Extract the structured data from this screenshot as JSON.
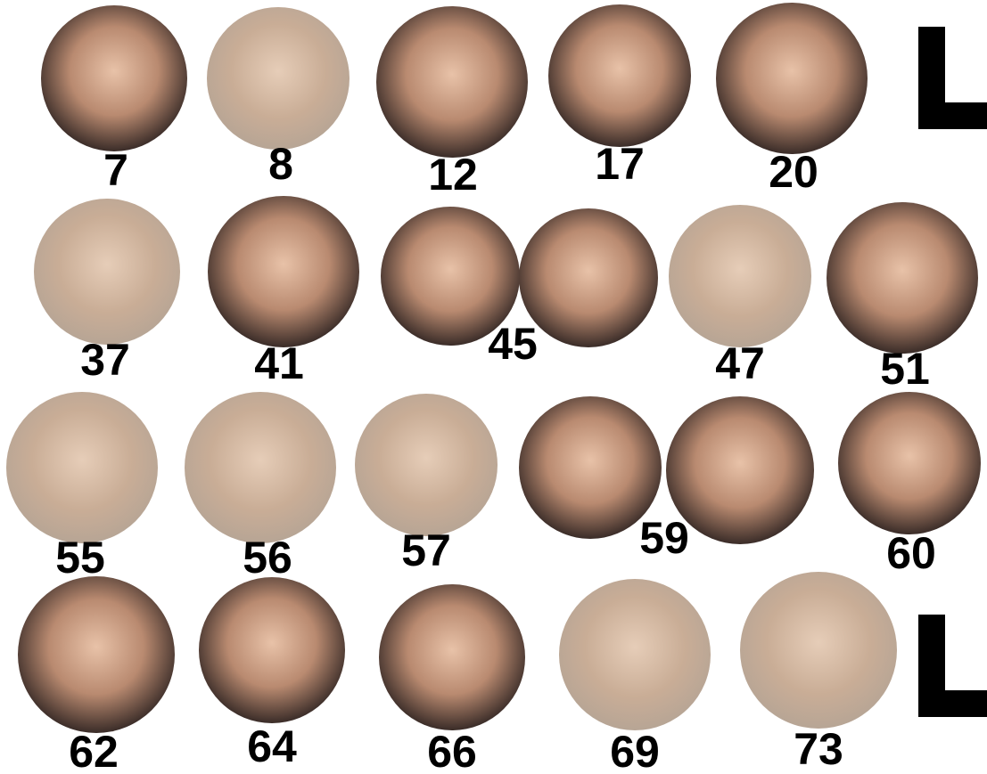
{
  "faces": [
    {
      "label": "7"
    },
    {
      "label": "8"
    },
    {
      "label": "12"
    },
    {
      "label": "17"
    },
    {
      "label": "20"
    },
    {
      "label": "37"
    },
    {
      "label": "41"
    },
    {
      "label": "45"
    },
    {
      "label": "47"
    },
    {
      "label": "51"
    },
    {
      "label": "55"
    },
    {
      "label": "56"
    },
    {
      "label": "57"
    },
    {
      "label": "59"
    },
    {
      "label": "60"
    },
    {
      "label": "62"
    },
    {
      "label": "64"
    },
    {
      "label": "66"
    },
    {
      "label": "69"
    },
    {
      "label": "73"
    }
  ]
}
